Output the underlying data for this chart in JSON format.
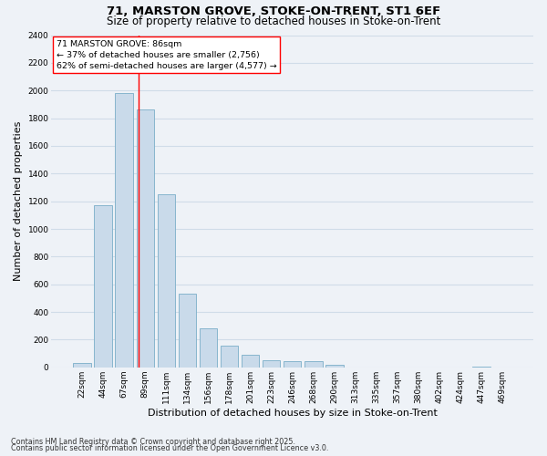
{
  "title1": "71, MARSTON GROVE, STOKE-ON-TRENT, ST1 6EF",
  "title2": "Size of property relative to detached houses in Stoke-on-Trent",
  "xlabel": "Distribution of detached houses by size in Stoke-on-Trent",
  "ylabel": "Number of detached properties",
  "categories": [
    "22sqm",
    "44sqm",
    "67sqm",
    "89sqm",
    "111sqm",
    "134sqm",
    "156sqm",
    "178sqm",
    "201sqm",
    "223sqm",
    "246sqm",
    "268sqm",
    "290sqm",
    "313sqm",
    "335sqm",
    "357sqm",
    "380sqm",
    "402sqm",
    "424sqm",
    "447sqm",
    "469sqm"
  ],
  "values": [
    30,
    1170,
    1980,
    1860,
    1250,
    530,
    280,
    155,
    90,
    50,
    45,
    45,
    20,
    0,
    0,
    0,
    0,
    0,
    0,
    5,
    0
  ],
  "bar_color": "#c9daea",
  "bar_edge_color": "#7aaec8",
  "vline_x": 2.68,
  "vline_color": "red",
  "annotation_text": "71 MARSTON GROVE: 86sqm\n← 37% of detached houses are smaller (2,756)\n62% of semi-detached houses are larger (4,577) →",
  "annotation_box_color": "white",
  "annotation_box_edge": "red",
  "ylim": [
    0,
    2400
  ],
  "yticks": [
    0,
    200,
    400,
    600,
    800,
    1000,
    1200,
    1400,
    1600,
    1800,
    2000,
    2200,
    2400
  ],
  "footnote1": "Contains HM Land Registry data © Crown copyright and database right 2025.",
  "footnote2": "Contains public sector information licensed under the Open Government Licence v3.0.",
  "bg_color": "#eef2f7",
  "grid_color": "#d0dce8",
  "title_fontsize": 9.5,
  "subtitle_fontsize": 8.5,
  "ylabel_fontsize": 8,
  "xlabel_fontsize": 8,
  "tick_fontsize": 6.5,
  "annotation_fontsize": 6.8,
  "footnote_fontsize": 5.8
}
